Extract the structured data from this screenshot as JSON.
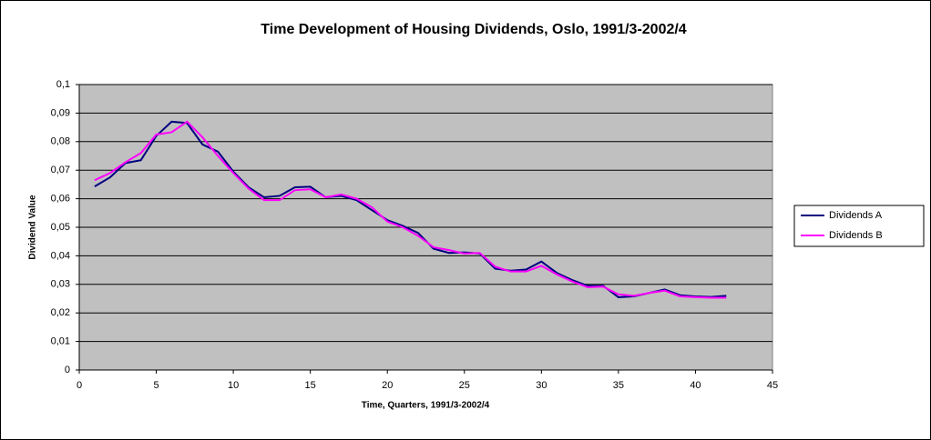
{
  "chart_data": {
    "type": "line",
    "title": "Time Development of Housing Dividends, Oslo, 1991/3-2002/4",
    "x_label": "Time, Quarters, 1991/3-2002/4",
    "y_label": "Dividend Value",
    "x": [
      1,
      2,
      3,
      4,
      5,
      6,
      7,
      8,
      9,
      10,
      11,
      12,
      13,
      14,
      15,
      16,
      17,
      18,
      19,
      20,
      21,
      22,
      23,
      24,
      25,
      26,
      27,
      28,
      29,
      30,
      31,
      32,
      33,
      34,
      35,
      36,
      37,
      38,
      39,
      40,
      41,
      42
    ],
    "series": [
      {
        "name": "Dividends A",
        "color": "#000080",
        "values": [
          0.0643,
          0.0675,
          0.0725,
          0.0735,
          0.082,
          0.087,
          0.0865,
          0.079,
          0.0765,
          0.0695,
          0.064,
          0.0605,
          0.061,
          0.064,
          0.0642,
          0.0605,
          0.061,
          0.0595,
          0.056,
          0.0525,
          0.0505,
          0.048,
          0.0425,
          0.041,
          0.0412,
          0.0408,
          0.0355,
          0.0348,
          0.0352,
          0.038,
          0.034,
          0.0315,
          0.0295,
          0.0295,
          0.0255,
          0.0258,
          0.027,
          0.0282,
          0.0262,
          0.0258,
          0.0256,
          0.026
        ]
      },
      {
        "name": "Dividends B",
        "color": "#ff00ff",
        "values": [
          0.0665,
          0.069,
          0.0728,
          0.076,
          0.0825,
          0.0833,
          0.087,
          0.0815,
          0.075,
          0.069,
          0.0635,
          0.0595,
          0.0595,
          0.063,
          0.0633,
          0.0605,
          0.0615,
          0.06,
          0.057,
          0.052,
          0.05,
          0.047,
          0.043,
          0.042,
          0.0408,
          0.041,
          0.0362,
          0.0345,
          0.0345,
          0.0365,
          0.0335,
          0.031,
          0.029,
          0.0292,
          0.0265,
          0.026,
          0.027,
          0.0278,
          0.0258,
          0.0255,
          0.0253,
          0.0253
        ]
      }
    ],
    "xlim": [
      0,
      45
    ],
    "xticks": [
      0,
      5,
      10,
      15,
      20,
      25,
      30,
      35,
      40,
      45
    ],
    "ylim": [
      0,
      0.1
    ],
    "yticks": [
      0,
      {
        "value": 0.01,
        "label": "0,01"
      },
      {
        "value": 0.02,
        "label": "0,02"
      },
      {
        "value": 0.03,
        "label": "0,03"
      },
      {
        "value": 0.04,
        "label": "0,04"
      },
      {
        "value": 0.05,
        "label": "0,05"
      },
      {
        "value": 0.06,
        "label": "0,06"
      },
      {
        "value": 0.07,
        "label": "0,07"
      },
      {
        "value": 0.08,
        "label": "0,08"
      },
      {
        "value": 0.09,
        "label": "0,09"
      },
      {
        "value": 0.1,
        "label": "0,1"
      }
    ],
    "grid": true,
    "legend": "right",
    "plot_background": "#c0c0c0"
  }
}
